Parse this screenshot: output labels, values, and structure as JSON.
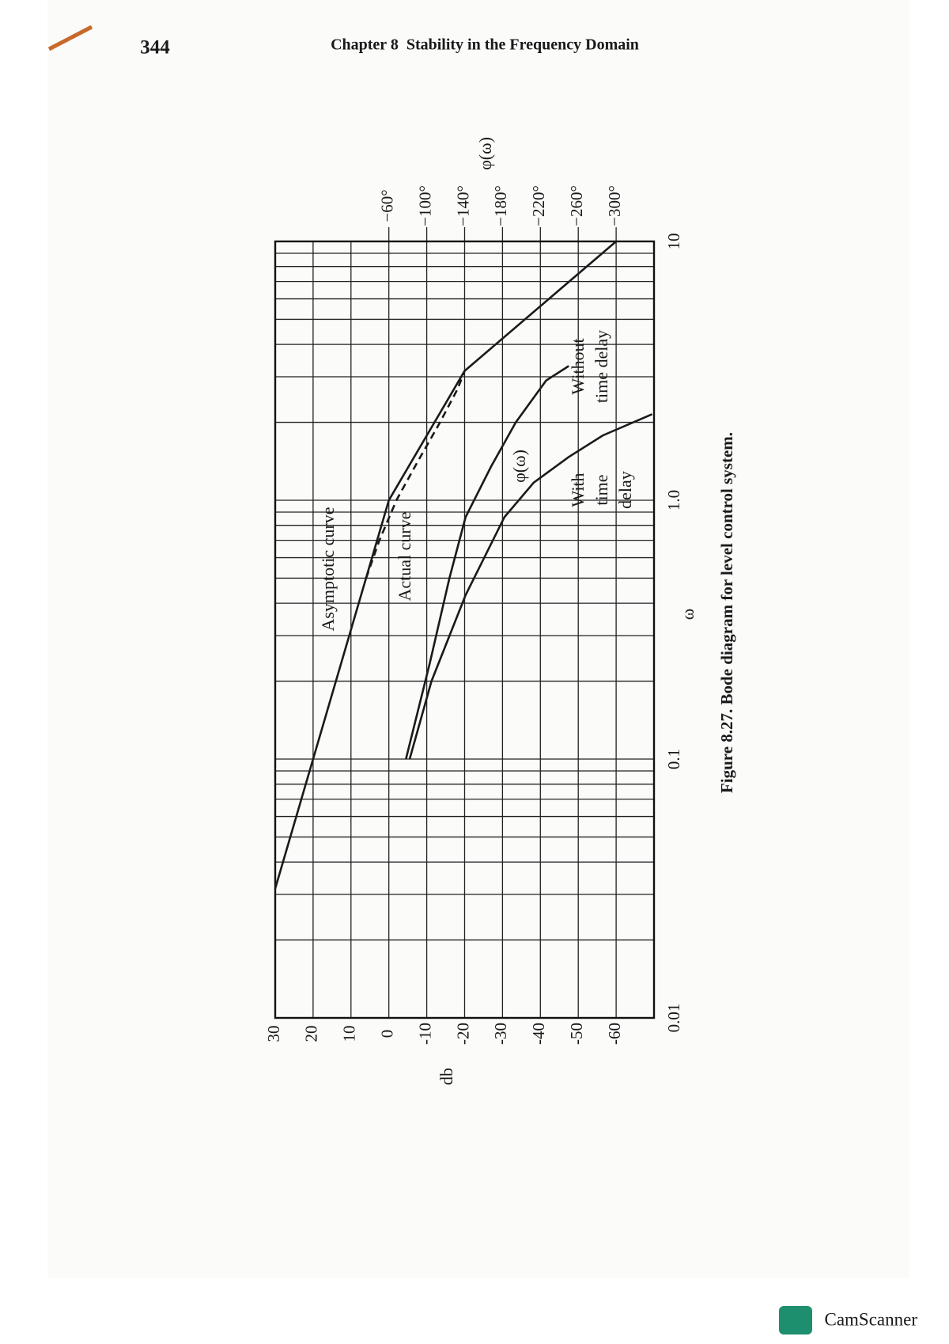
{
  "page_number": "344",
  "running_head": "Chapter 8  Stability in the Frequency Domain",
  "watermark": "CamScanner",
  "chart_data": {
    "type": "line",
    "caption": "Figure 8.27.  Bode diagram for level control system.",
    "xlabel": "ω",
    "ylabel": "db",
    "y2label": "φ(ω)",
    "xscale": "log",
    "xlim": [
      0.01,
      10
    ],
    "xticks": [
      0.01,
      0.1,
      {
        "value": 1,
        "label": "1.0"
      },
      10
    ],
    "xminorticks": [
      0.02,
      0.03,
      0.04,
      0.05,
      0.06,
      0.07,
      0.08,
      0.09,
      0.2,
      0.3,
      0.4,
      0.5,
      0.6,
      0.7,
      0.8,
      0.9,
      2,
      3,
      4,
      5,
      6,
      7,
      8,
      9
    ],
    "ylim": [
      -70,
      30
    ],
    "yticks": [
      30,
      20,
      10,
      0,
      -10,
      -20,
      -30,
      -40,
      -50,
      -60
    ],
    "y2lim": [
      -340,
      60
    ],
    "y2ticks": [
      {
        "value": -60,
        "label": "−60°"
      },
      {
        "value": -100,
        "label": "−100°"
      },
      {
        "value": -140,
        "label": "−140°"
      },
      {
        "value": -180,
        "label": "−180°"
      },
      {
        "value": -220,
        "label": "−220°"
      },
      {
        "value": -260,
        "label": "−260°"
      },
      {
        "value": -300,
        "label": "−300°"
      }
    ],
    "grid": true,
    "color": "#1a1a1a",
    "series": [
      {
        "name": "Asymptotic curve",
        "x": [
          0.0316,
          1,
          3.16,
          10
        ],
        "values": [
          30,
          0,
          -20,
          -60
        ]
      },
      {
        "name": "Actual curve",
        "dashed": true,
        "x": [
          0.5,
          0.7,
          1.0,
          1.4,
          2.0,
          2.7,
          3.16
        ],
        "values": [
          6,
          2.5,
          -2,
          -7.5,
          -13.5,
          -18.2,
          -20
        ]
      },
      {
        "label_lines": [
          "Without",
          "time delay"
        ],
        "axis": "y2",
        "x": [
          0.1,
          0.233,
          0.5,
          0.86,
          1.35,
          2.0,
          2.9,
          3.3
        ],
        "values": [
          -78,
          -103,
          -124,
          -141,
          -168,
          -194,
          -226,
          -250
        ]
      },
      {
        "label_lines": [
          "With",
          "time",
          "delay"
        ],
        "axis": "y2",
        "x": [
          0.1,
          0.2,
          0.43,
          0.86,
          1.17,
          1.47,
          1.78,
          2.15
        ],
        "values": [
          -82,
          -105,
          -141,
          -182,
          -213,
          -250,
          -286,
          -338
        ]
      }
    ],
    "annotations": [
      "φ(ω)"
    ]
  }
}
